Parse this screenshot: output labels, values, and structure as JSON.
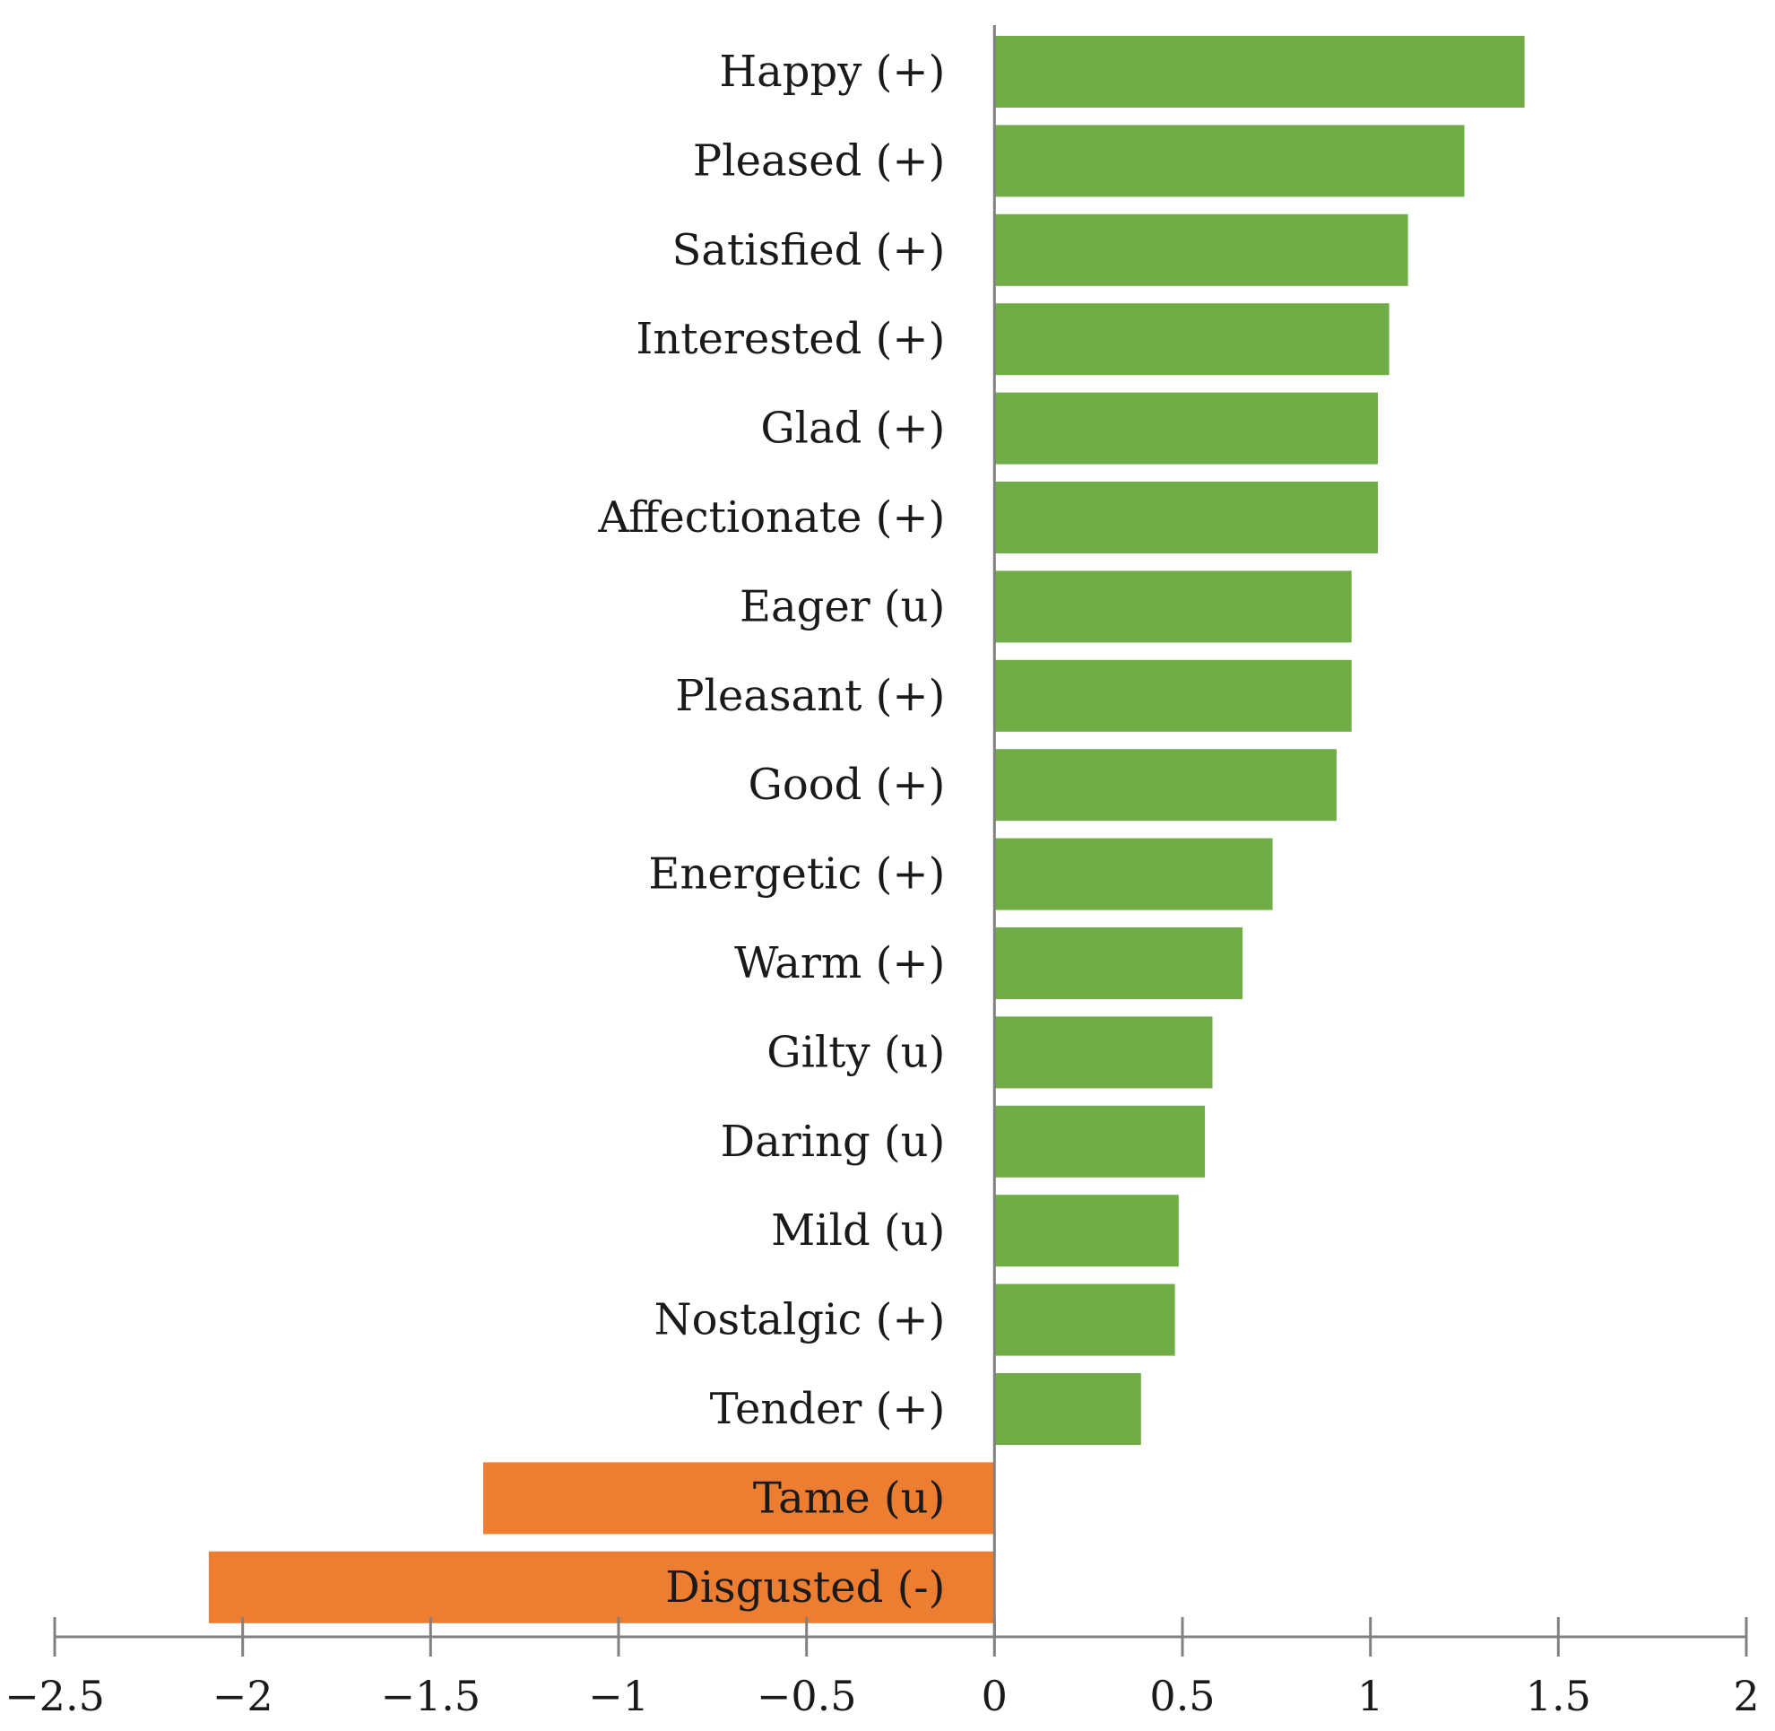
{
  "chart_data": {
    "type": "bar",
    "orientation": "horizontal",
    "title": "",
    "xlabel": "",
    "ylabel": "",
    "xlim": [
      -2.5,
      2
    ],
    "x_ticks": [
      -2.5,
      -2,
      -1.5,
      -1,
      -0.5,
      0,
      0.5,
      1,
      1.5,
      2
    ],
    "x_tick_labels": [
      "−2.5",
      "−2",
      "−1.5",
      "−1",
      "−0.5",
      "0",
      "0.5",
      "1",
      "1.5",
      "2"
    ],
    "grid": false,
    "positive_color": "#70ad47",
    "negative_color": "#ed7d31",
    "axis_color": "#808080",
    "categories": [
      "Happy (+)",
      "Pleased (+)",
      "Satisfied (+)",
      "Interested (+)",
      "Glad (+)",
      "Affectionate (+)",
      "Eager (u)",
      "Pleasant (+)",
      "Good (+)",
      "Energetic (+)",
      "Warm (+)",
      "Gilty (u)",
      "Daring (u)",
      "Mild (u)",
      "Nostalgic (+)",
      "Tender (+)",
      "Tame (u)",
      "Disgusted (-)"
    ],
    "values": [
      1.41,
      1.25,
      1.1,
      1.05,
      1.02,
      1.02,
      0.95,
      0.95,
      0.91,
      0.74,
      0.66,
      0.58,
      0.56,
      0.49,
      0.48,
      0.39,
      -1.36,
      -2.09
    ]
  }
}
